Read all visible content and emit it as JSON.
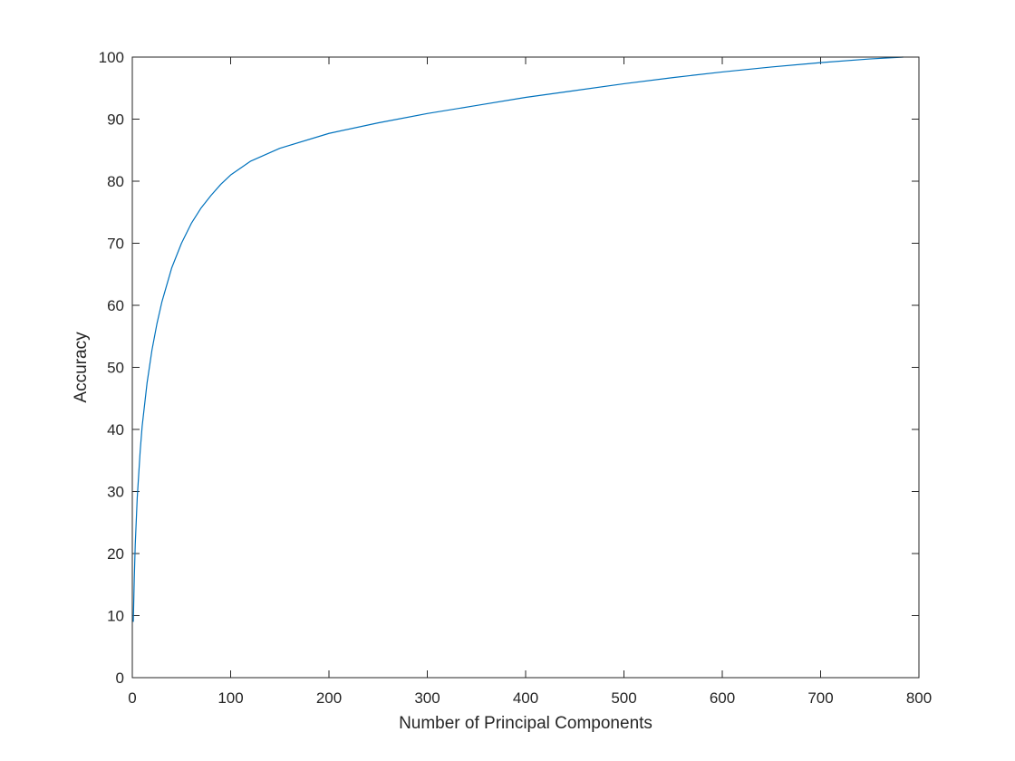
{
  "chart_data": {
    "type": "line",
    "title": "",
    "xlabel": "Number of Principal Components",
    "ylabel": "Accuracy",
    "xlim": [
      0,
      800
    ],
    "ylim": [
      0,
      100
    ],
    "xticks": [
      0,
      100,
      200,
      300,
      400,
      500,
      600,
      700,
      800
    ],
    "yticks": [
      0,
      10,
      20,
      30,
      40,
      50,
      60,
      70,
      80,
      90,
      100
    ],
    "grid": false,
    "legend": "none",
    "colors": {
      "line": "#0072BD",
      "axes": "#262626"
    },
    "series": [
      {
        "x": [
          1,
          2,
          3,
          5,
          8,
          10,
          15,
          20,
          25,
          30,
          40,
          50,
          60,
          70,
          80,
          90,
          100,
          120,
          150,
          200,
          250,
          300,
          350,
          400,
          450,
          500,
          550,
          600,
          650,
          700,
          750,
          784
        ],
        "y": [
          9.0,
          16.0,
          21.5,
          29.0,
          36.5,
          40.5,
          47.5,
          52.8,
          57.0,
          60.5,
          66.0,
          70.0,
          73.2,
          75.7,
          77.7,
          79.5,
          81.0,
          83.2,
          85.3,
          87.7,
          89.4,
          90.9,
          92.2,
          93.5,
          94.6,
          95.7,
          96.7,
          97.6,
          98.4,
          99.1,
          99.7,
          100.0
        ]
      }
    ]
  }
}
